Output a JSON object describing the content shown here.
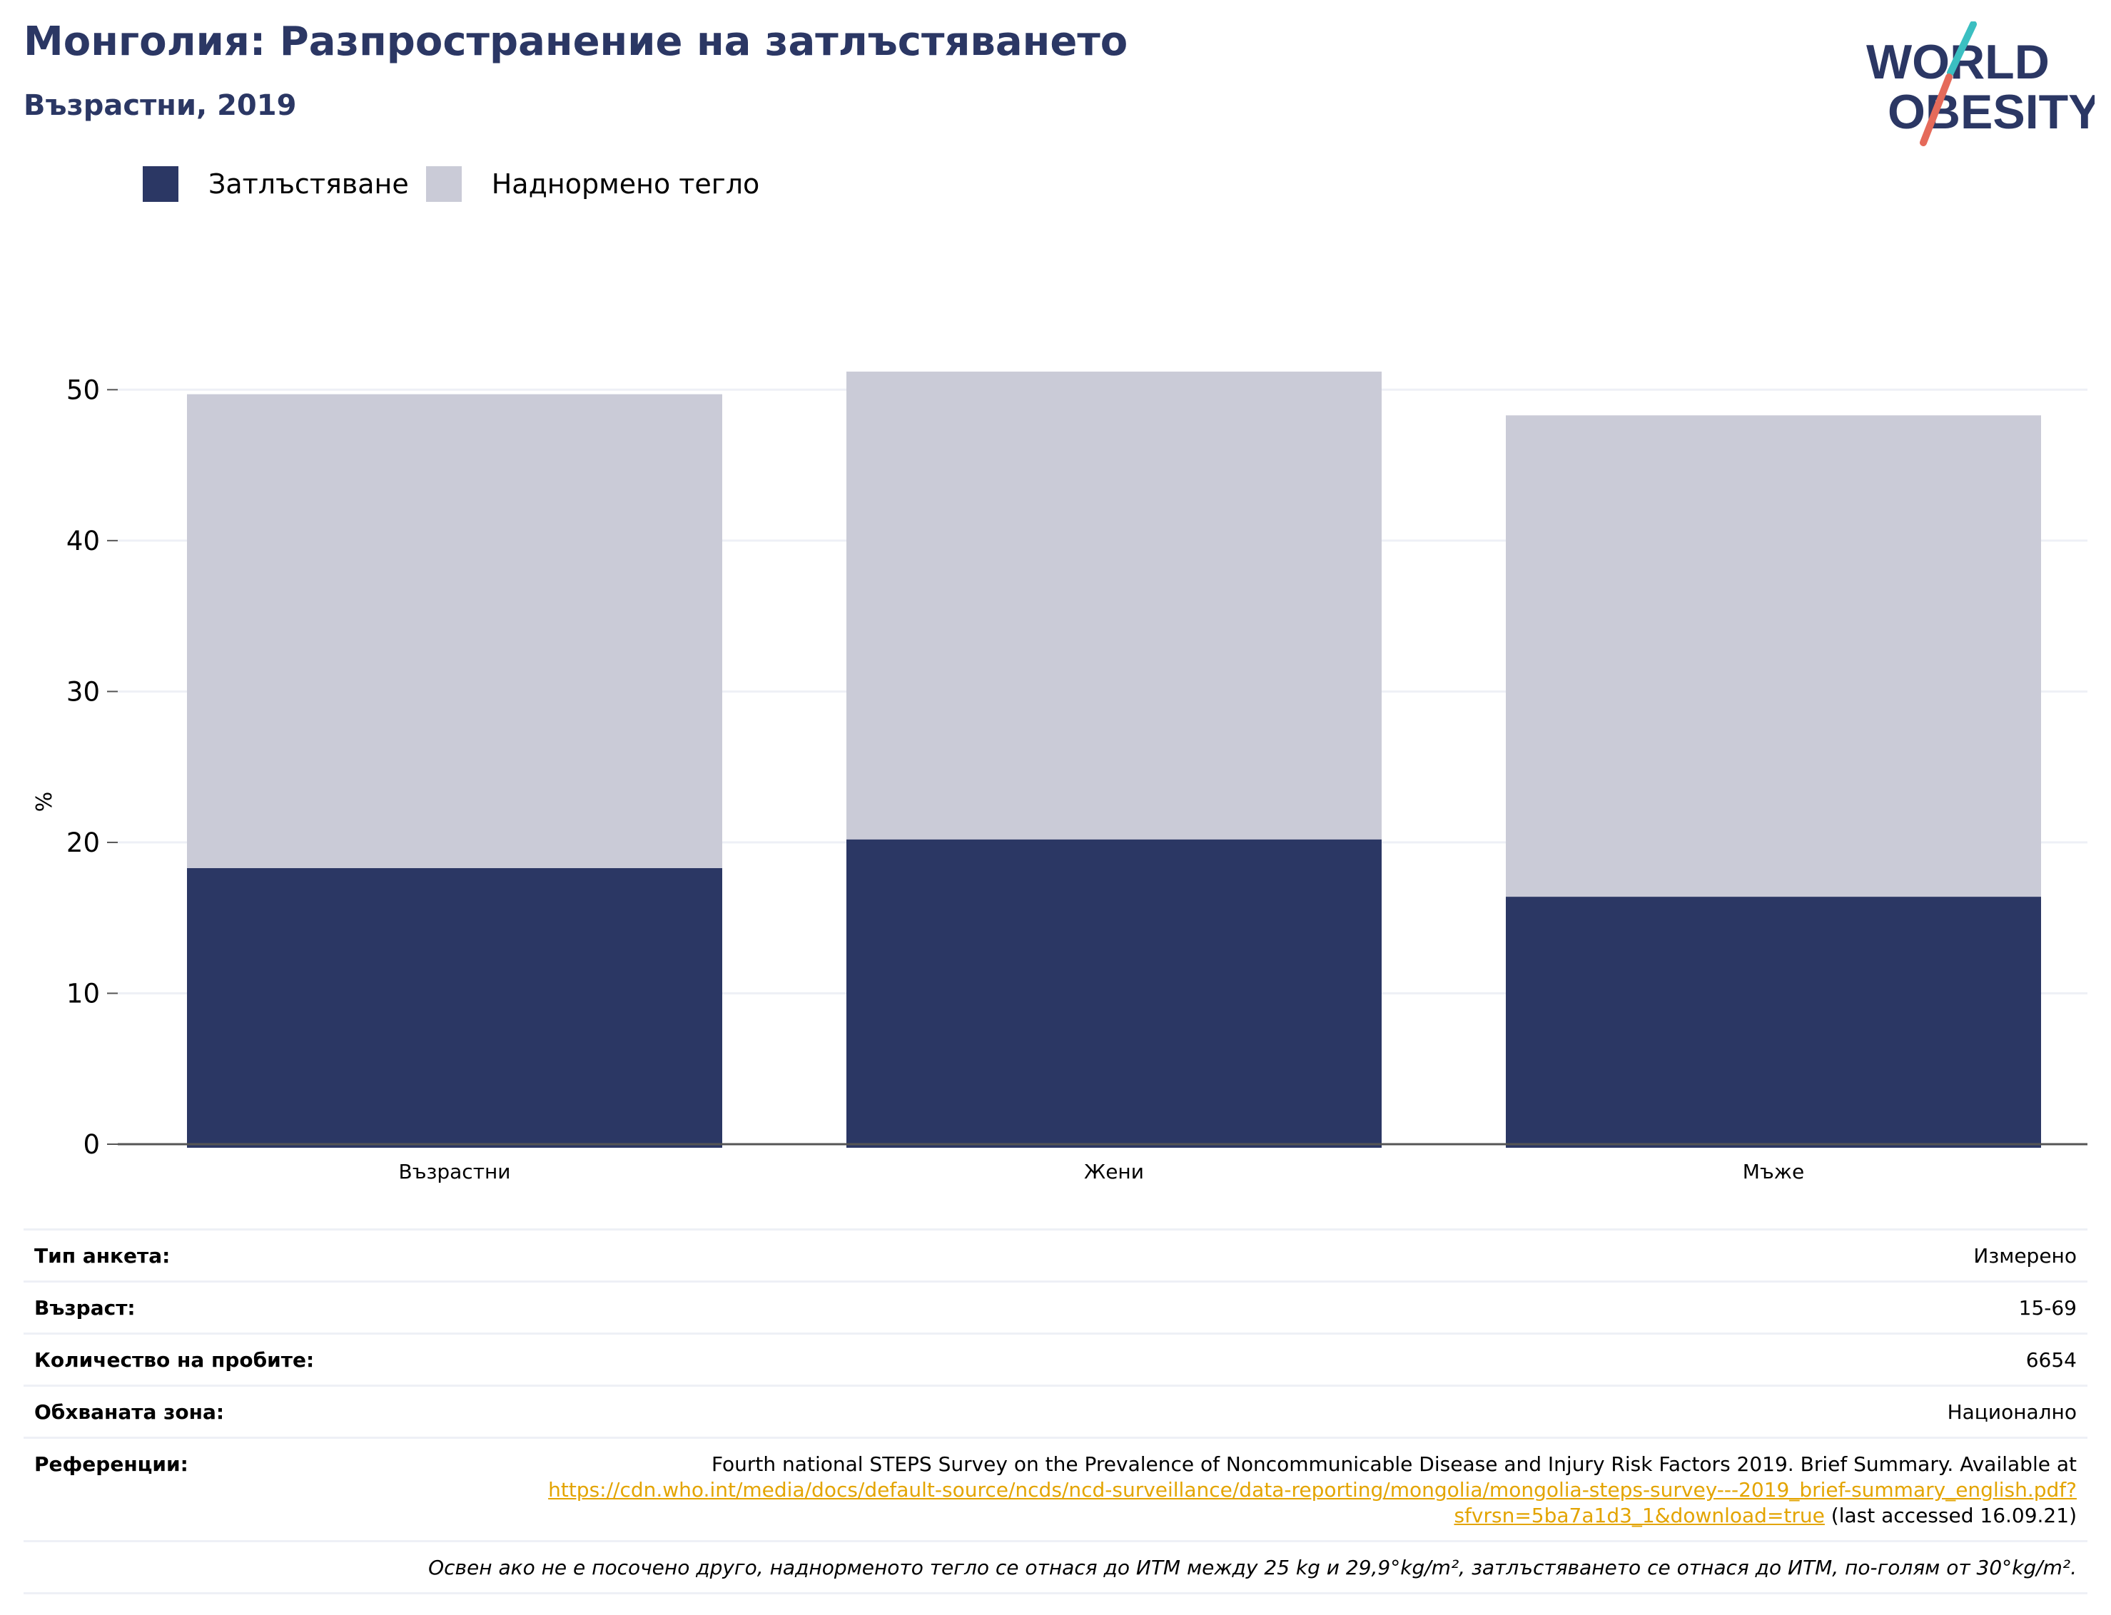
{
  "header": {
    "title": "Монголия: Разпространение на затлъстяването",
    "subtitle": "Възрастни, 2019"
  },
  "logo": {
    "line1": "WORLD",
    "line2": "OBESITY",
    "accent_teal": "#3bbfc1",
    "accent_red": "#e56a5a",
    "text_color": "#2b3764"
  },
  "colors": {
    "obesity": "#2b3764",
    "overweight": "#cacbd7",
    "grid": "#eef0f6",
    "axis": "#555555"
  },
  "legend": {
    "items": [
      {
        "label": "Затлъстяване",
        "color": "#2b3764"
      },
      {
        "label": "Наднормено тегло",
        "color": "#cacbd7"
      }
    ]
  },
  "chart_data": {
    "type": "bar",
    "stacked": true,
    "categories": [
      "Възрастни",
      "Жени",
      "Мъже"
    ],
    "series": [
      {
        "name": "Затлъстяване",
        "values": [
          18.3,
          20.2,
          16.4
        ]
      },
      {
        "name": "Наднормено тегло",
        "values": [
          31.4,
          31.0,
          31.9
        ]
      }
    ],
    "totals": [
      49.7,
      51.2,
      48.3
    ],
    "ylabel": "%",
    "ylim": [
      0,
      52
    ],
    "yticks": [
      0,
      10,
      20,
      30,
      40,
      50
    ],
    "grid": true,
    "legend_position": "top-left"
  },
  "info": {
    "rows": [
      {
        "label": "Тип анкета:",
        "value": "Измерено"
      },
      {
        "label": "Възраст:",
        "value": "15-69"
      },
      {
        "label": "Количество на пробите:",
        "value": "6654"
      },
      {
        "label": "Обхваната зона:",
        "value": "Национално"
      }
    ],
    "reference": {
      "label": "Референции:",
      "text": "Fourth national STEPS Survey on the Prevalence of Noncommunicable Disease and Injury Risk Factors 2019. Brief Summary. Available at",
      "link": "https://cdn.who.int/media/docs/default-source/ncds/ncd-surveillance/data-reporting/mongolia/mongolia-steps-survey---2019_brief-summary_english.pdf?sfvrsn=5ba7a1d3_1&download=true",
      "suffix": "(last accessed 16.09.21)"
    },
    "note": "Освен ако не е посочено друго, наднорменото тегло се отнася до ИТМ между 25 kg и 29,9°kg/m², затлъстяването се отнася до ИТМ, по-голям от 30°kg/m²."
  }
}
